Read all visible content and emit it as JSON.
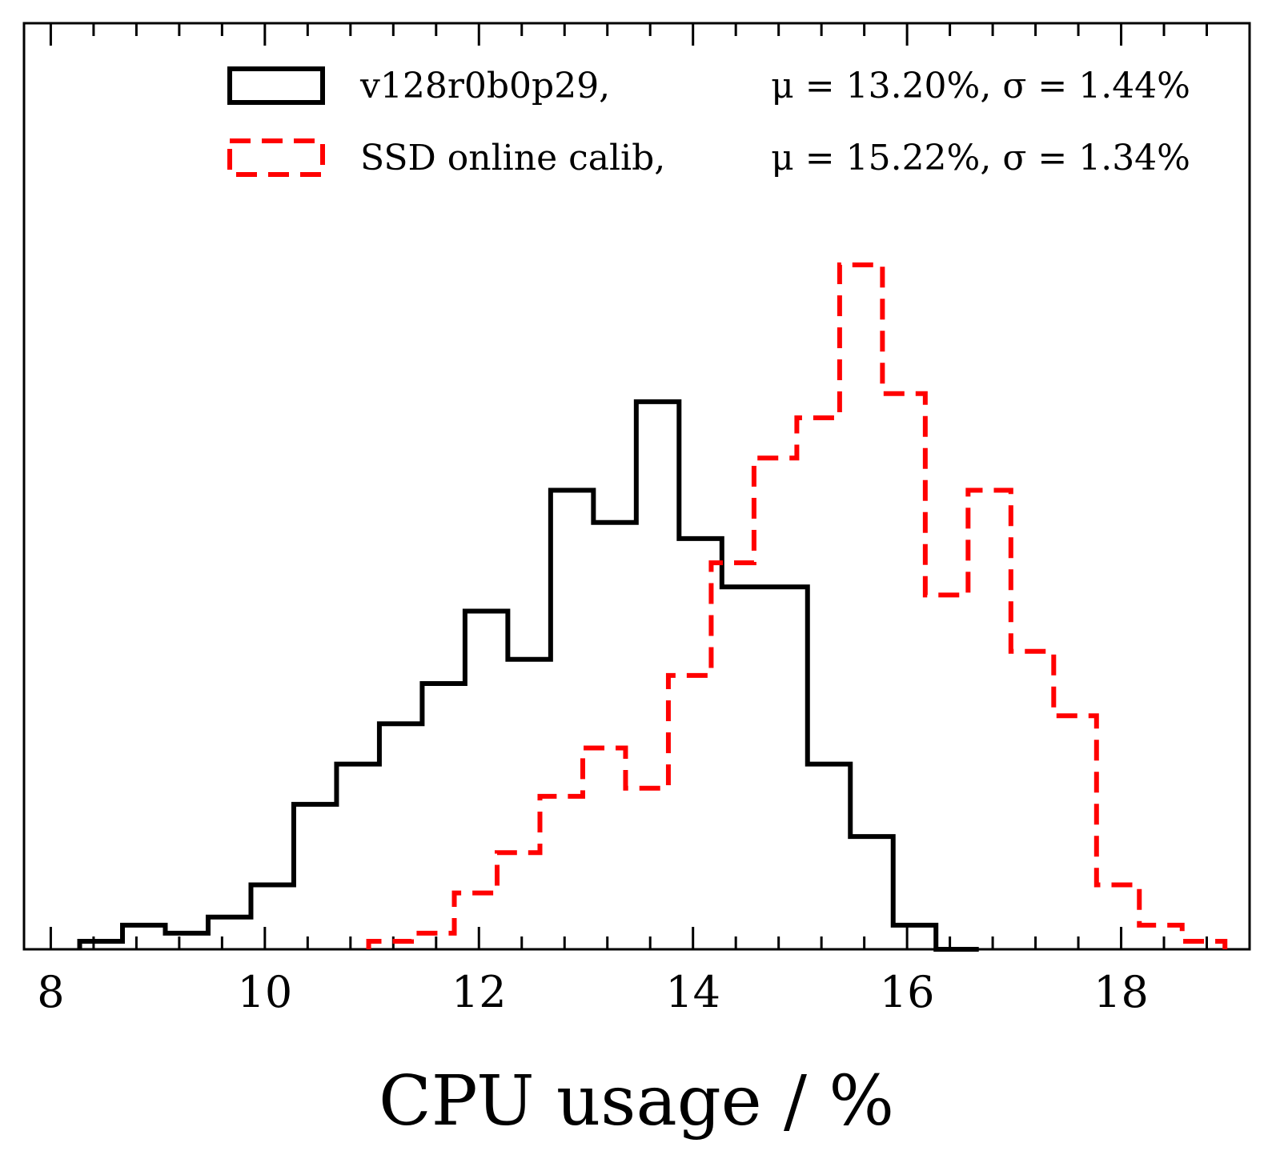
{
  "chart_data": {
    "type": "histogram",
    "title": "",
    "xlabel": "CPU usage / %",
    "ylabel": "",
    "xlim": [
      7.75,
      19.2
    ],
    "ylim": [
      0,
      115
    ],
    "xticks": [
      8,
      10,
      12,
      14,
      16,
      18
    ],
    "xtick_labels": [
      "8",
      "10",
      "12",
      "14",
      "16",
      "18"
    ],
    "x_minor_step": 0.4,
    "y_ticks_shown": false,
    "grid": false,
    "legend_position": "top-right",
    "series": [
      {
        "name": "v128r0b0p29,",
        "stats": "μ = 13.20%, σ = 1.44%",
        "color": "#000000",
        "linestyle": "solid",
        "edges": [
          8.27,
          8.67,
          9.07,
          9.47,
          9.87,
          10.27,
          10.67,
          11.07,
          11.47,
          11.87,
          12.27,
          12.67,
          13.07,
          13.47,
          13.87,
          14.27,
          14.67,
          15.07,
          15.47,
          15.87,
          16.27
        ],
        "counts": [
          1,
          3,
          2,
          4,
          8,
          18,
          23,
          28,
          33,
          42,
          36,
          57,
          53,
          68,
          51,
          45,
          45,
          23,
          14,
          3,
          0
        ]
      },
      {
        "name": "SSD online calib,",
        "stats": "μ = 15.22%, σ = 1.34%",
        "color": "#ff0000",
        "linestyle": "dashed",
        "edges": [
          10.97,
          11.37,
          11.77,
          12.17,
          12.57,
          12.97,
          13.37,
          13.77,
          14.17,
          14.57,
          14.97,
          15.37,
          15.77,
          16.17,
          16.57,
          16.97,
          17.37,
          17.77,
          18.17,
          18.57
        ],
        "counts": [
          1,
          2,
          7,
          12,
          19,
          25,
          20,
          34,
          48,
          61,
          66,
          85,
          69,
          44,
          57,
          37,
          29,
          8,
          3,
          1
        ]
      }
    ]
  }
}
